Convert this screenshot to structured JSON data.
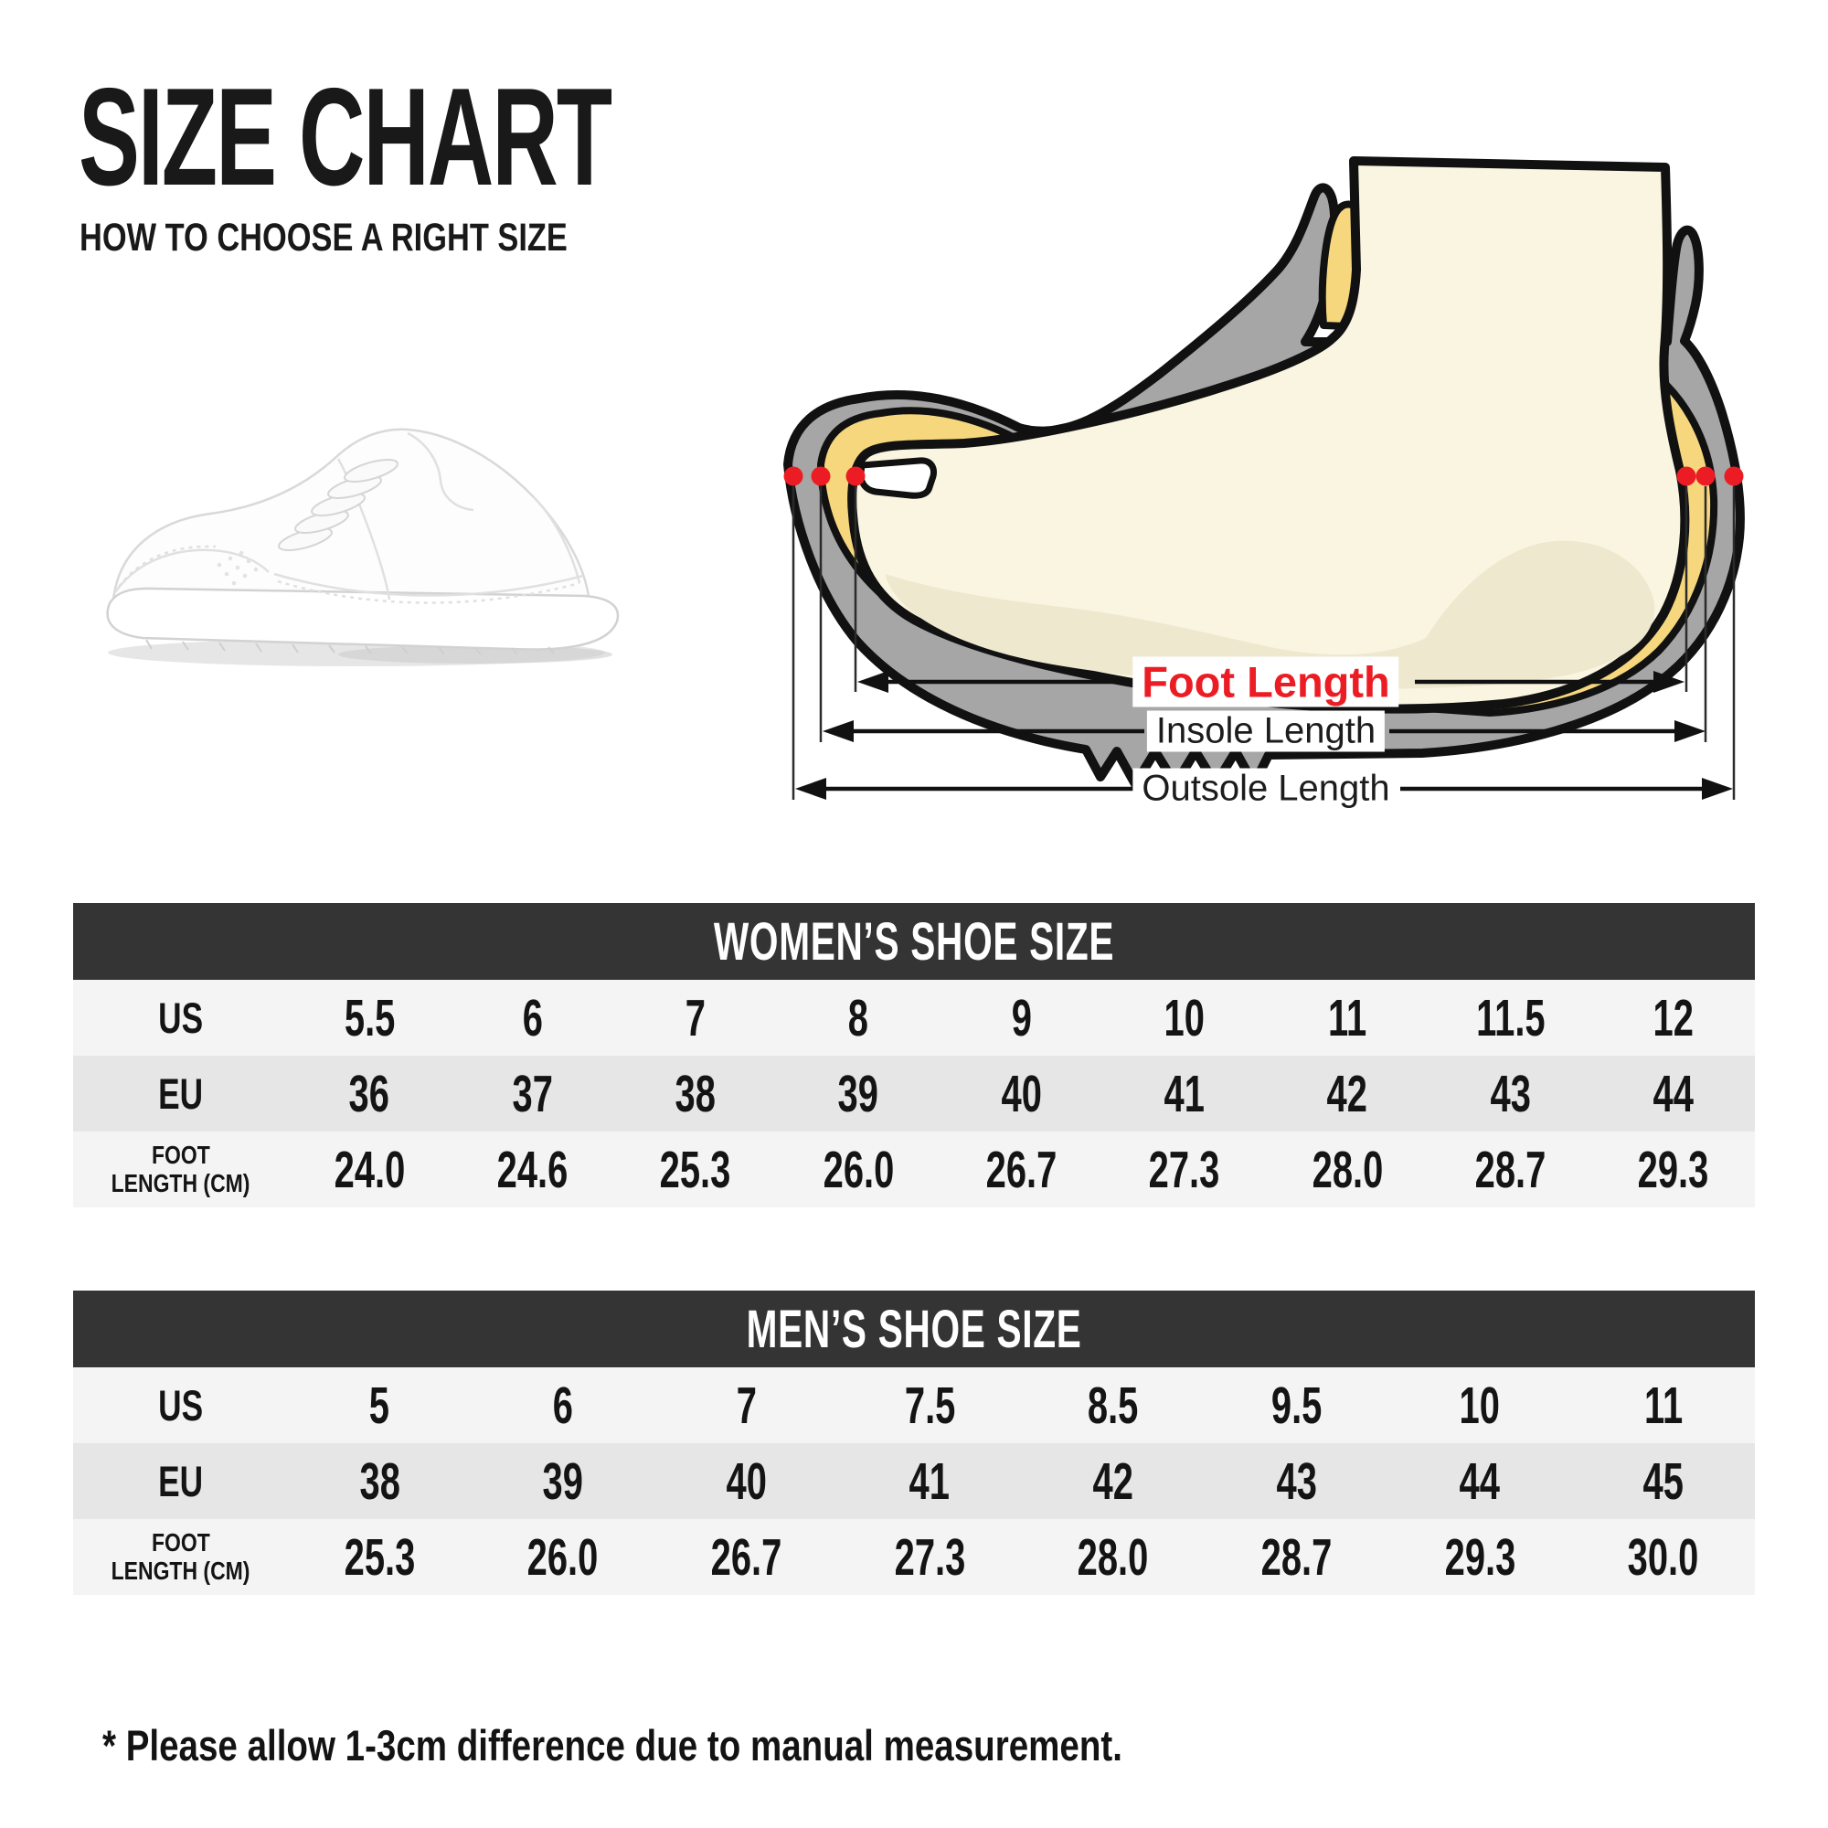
{
  "header": {
    "title": "SIZE CHART",
    "subtitle": "HOW TO CHOOSE A RIGHT SIZE"
  },
  "diagram": {
    "foot_length_label": "Foot Length",
    "insole_length_label": "Insole Length",
    "outsole_length_label": "Outsole Length"
  },
  "footnote": "* Please allow 1-3cm difference due to manual measurement.",
  "colors": {
    "accent_red": "#ec1c24",
    "table_header_bg": "#343434",
    "row_light": "#f4f4f4",
    "row_dark": "#e6e6e6",
    "shoe_gray": "#a6a6a6",
    "insole_yellow": "#f6d77d",
    "foot_cream": "#faf5e0",
    "outline_black": "#111111"
  },
  "chart_data": [
    {
      "type": "table",
      "title": "WOMEN’S SHOE SIZE",
      "rows": [
        {
          "label": "US",
          "values": [
            "5.5",
            "6",
            "7",
            "8",
            "9",
            "10",
            "11",
            "11.5",
            "12"
          ]
        },
        {
          "label": "EU",
          "values": [
            "36",
            "37",
            "38",
            "39",
            "40",
            "41",
            "42",
            "43",
            "44"
          ]
        },
        {
          "label": "FOOT LENGTH (CM)",
          "label_line1": "FOOT",
          "label_line2": "LENGTH (CM)",
          "values": [
            "24.0",
            "24.6",
            "25.3",
            "26.0",
            "26.7",
            "27.3",
            "28.0",
            "28.7",
            "29.3"
          ]
        }
      ]
    },
    {
      "type": "table",
      "title": "MEN’S SHOE SIZE",
      "rows": [
        {
          "label": "US",
          "values": [
            "5",
            "6",
            "7",
            "7.5",
            "8.5",
            "9.5",
            "10",
            "11"
          ]
        },
        {
          "label": "EU",
          "values": [
            "38",
            "39",
            "40",
            "41",
            "42",
            "43",
            "44",
            "45"
          ]
        },
        {
          "label": "FOOT LENGTH (CM)",
          "label_line1": "FOOT",
          "label_line2": "LENGTH (CM)",
          "values": [
            "25.3",
            "26.0",
            "26.7",
            "27.3",
            "28.0",
            "28.7",
            "29.3",
            "30.0"
          ]
        }
      ]
    }
  ]
}
